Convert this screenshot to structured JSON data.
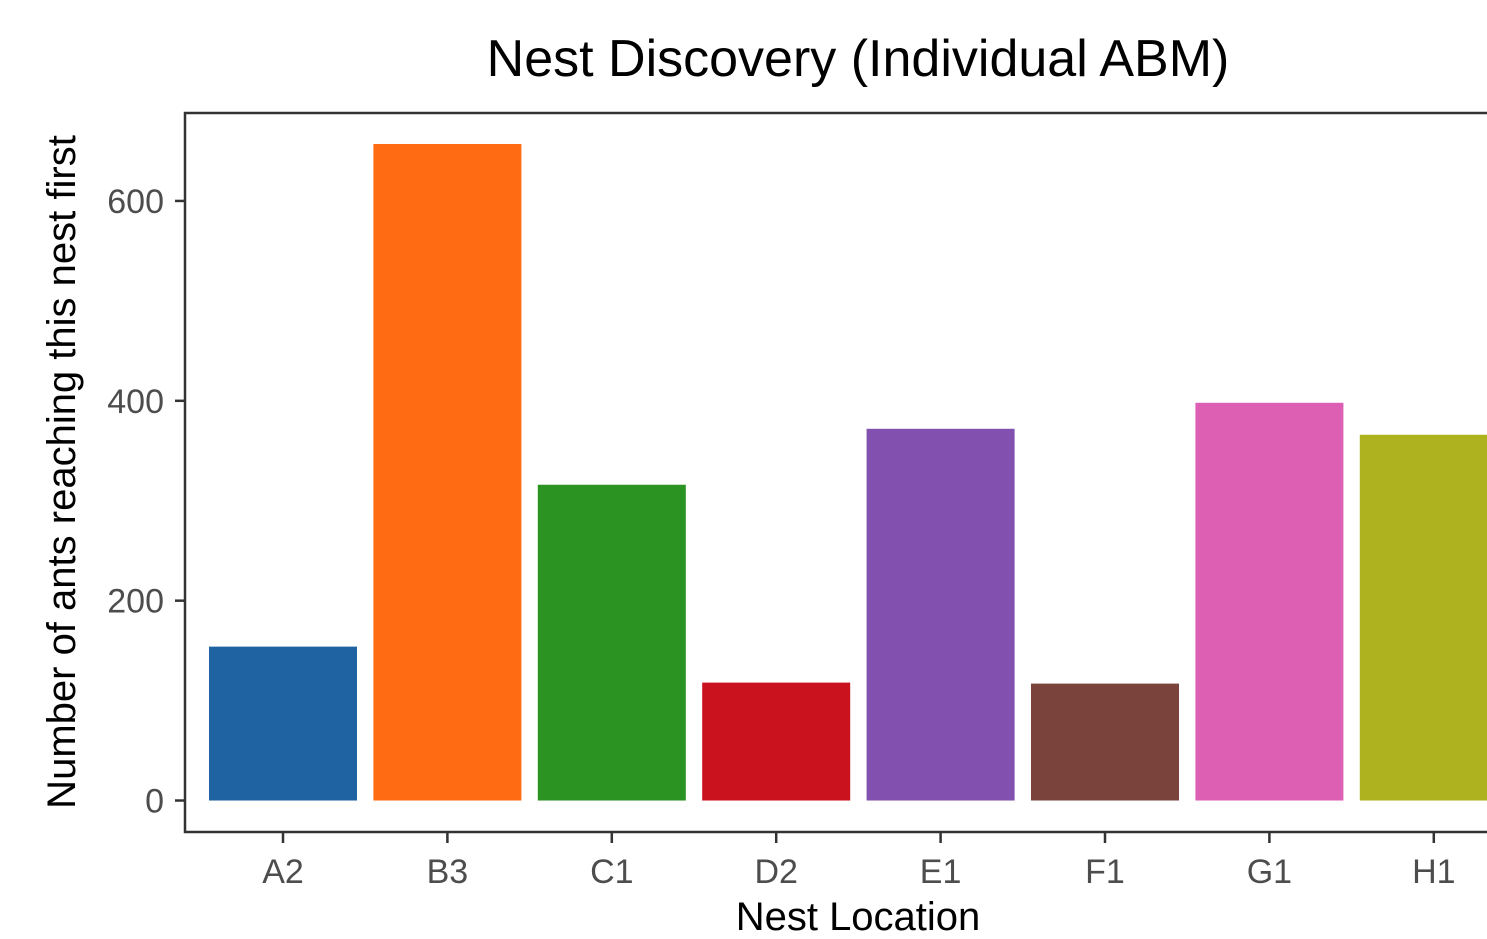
{
  "chart_data": {
    "type": "bar",
    "title": "Nest Discovery (Individual ABM)",
    "xlabel": "Nest Location",
    "ylabel": "Number of ants reaching this nest first",
    "categories": [
      "A2",
      "B3",
      "C1",
      "D2",
      "E1",
      "F1",
      "G1",
      "H1"
    ],
    "values": [
      154,
      657,
      316,
      118,
      372,
      117,
      398,
      366
    ],
    "colors": [
      "#1f63a3",
      "#fe6b12",
      "#2a9322",
      "#c9121e",
      "#8250ae",
      "#7a443c",
      "#dc5fb4",
      "#adb21e"
    ],
    "yticks": [
      0,
      200,
      400,
      600
    ],
    "ylim": [
      -31.5,
      688
    ],
    "grid": false,
    "legend": "none"
  }
}
